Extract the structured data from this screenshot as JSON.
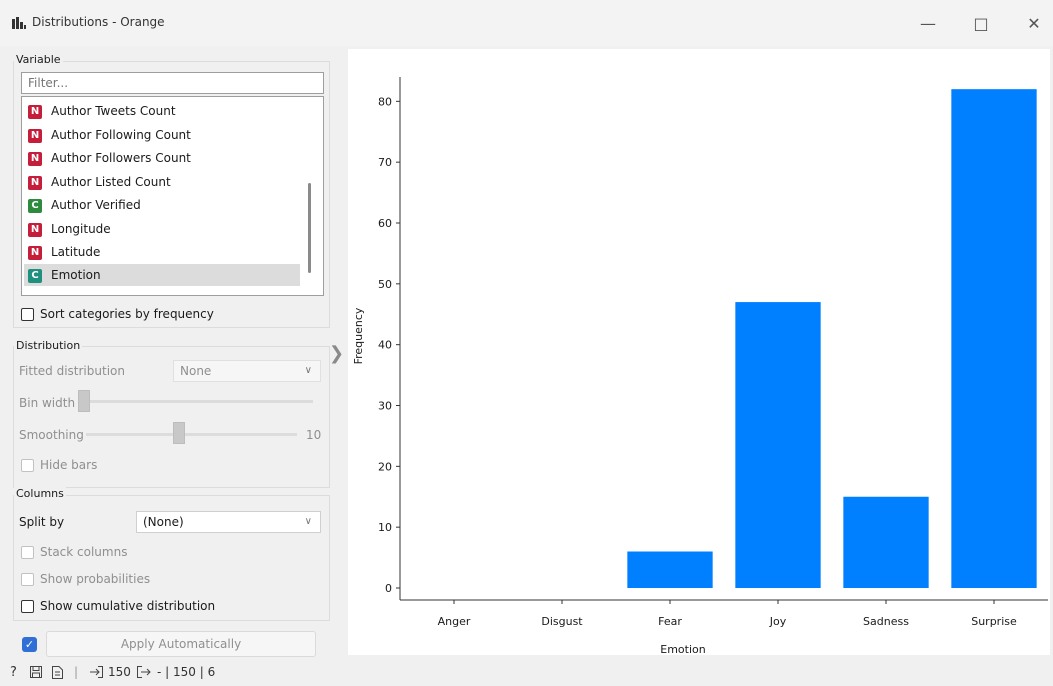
{
  "window": {
    "title": "Distributions - Orange",
    "icons": [
      "bar-chart-icon",
      "minimize-icon",
      "maximize-icon",
      "close-icon"
    ]
  },
  "variable": {
    "group_title": "Variable",
    "filter_placeholder": "Filter...",
    "items": [
      {
        "type": "N",
        "label": "Author Tweets Count"
      },
      {
        "type": "N",
        "label": "Author Following Count"
      },
      {
        "type": "N",
        "label": "Author Followers Count"
      },
      {
        "type": "N",
        "label": "Author Listed Count"
      },
      {
        "type": "C",
        "label": "Author Verified"
      },
      {
        "type": "N",
        "label": "Longitude"
      },
      {
        "type": "N",
        "label": "Latitude"
      },
      {
        "type": "C",
        "label": "Emotion",
        "selected": true
      }
    ],
    "sort_by_frequency_label": "Sort categories by frequency",
    "sort_by_frequency_checked": false
  },
  "distribution": {
    "group_title": "Distribution",
    "fitted_label": "Fitted distribution",
    "fitted_value": "None",
    "bin_width_label": "Bin width",
    "smoothing_label": "Smoothing",
    "smoothing_value": "10",
    "hide_bars_label": "Hide bars"
  },
  "columns": {
    "group_title": "Columns",
    "split_by_label": "Split by",
    "split_by_value": "(None)",
    "stack_columns_label": "Stack columns",
    "show_probabilities_label": "Show probabilities",
    "show_cumulative_label": "Show cumulative distribution"
  },
  "apply": {
    "checked": true,
    "label": "Apply Automatically"
  },
  "status": {
    "input_count": "150",
    "output_text": "- | 150 | 6",
    "icons": [
      "help-icon",
      "save-icon",
      "report-icon",
      "input-icon",
      "output-icon"
    ]
  },
  "colors": {
    "bar": "#0080ff",
    "numeric_badge": "#c41e3a",
    "categorical_badge": "#2e8b3e",
    "accent": "#2f6fd6"
  },
  "chart_data": {
    "type": "bar",
    "categories": [
      "Anger",
      "Disgust",
      "Fear",
      "Joy",
      "Sadness",
      "Surprise"
    ],
    "values": [
      0,
      0,
      6,
      47,
      15,
      82
    ],
    "xlabel": "Emotion",
    "ylabel": "Frequency",
    "yticks": [
      0,
      10,
      20,
      30,
      40,
      50,
      60,
      70,
      80
    ],
    "ylim": [
      0,
      84
    ],
    "grid": false
  }
}
